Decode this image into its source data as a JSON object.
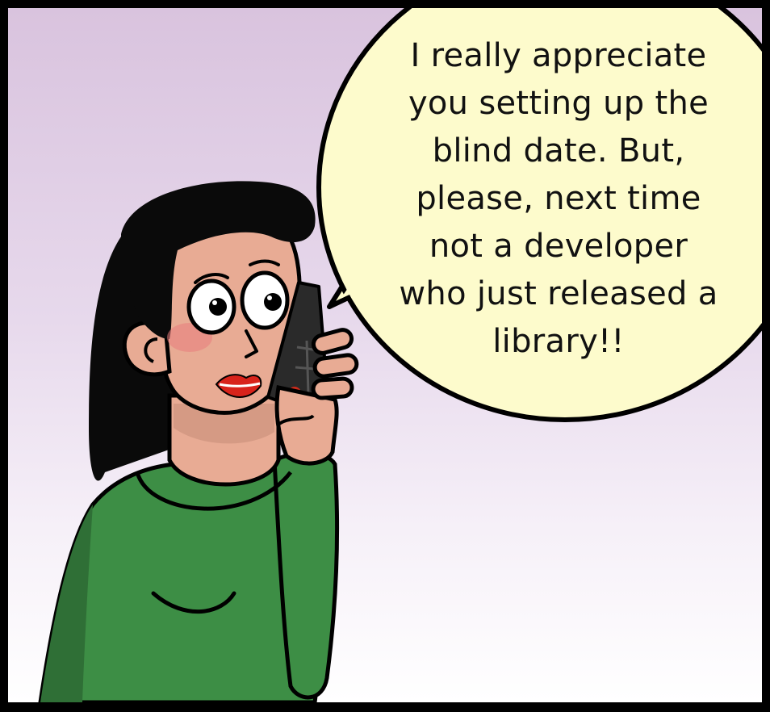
{
  "speech_bubble": {
    "lines": [
      "I really appreciate",
      "you setting up the",
      "blind date. But,",
      "please, next time",
      "not a developer",
      "who just released a",
      "library!!"
    ]
  },
  "colors": {
    "background_top": "#d9c3de",
    "background_bottom": "#ffffff",
    "bubble_fill": "#fdfbcc",
    "skin": "#e8ab94",
    "hair": "#0a0a0a",
    "sweater": "#3d8e45",
    "lips": "#d8231b",
    "phone": "#2a2a2a",
    "phone_button": "#cc2a1b"
  },
  "icons": {
    "character": "woman-on-phone-illustration",
    "phone": "mobile-phone-icon"
  }
}
